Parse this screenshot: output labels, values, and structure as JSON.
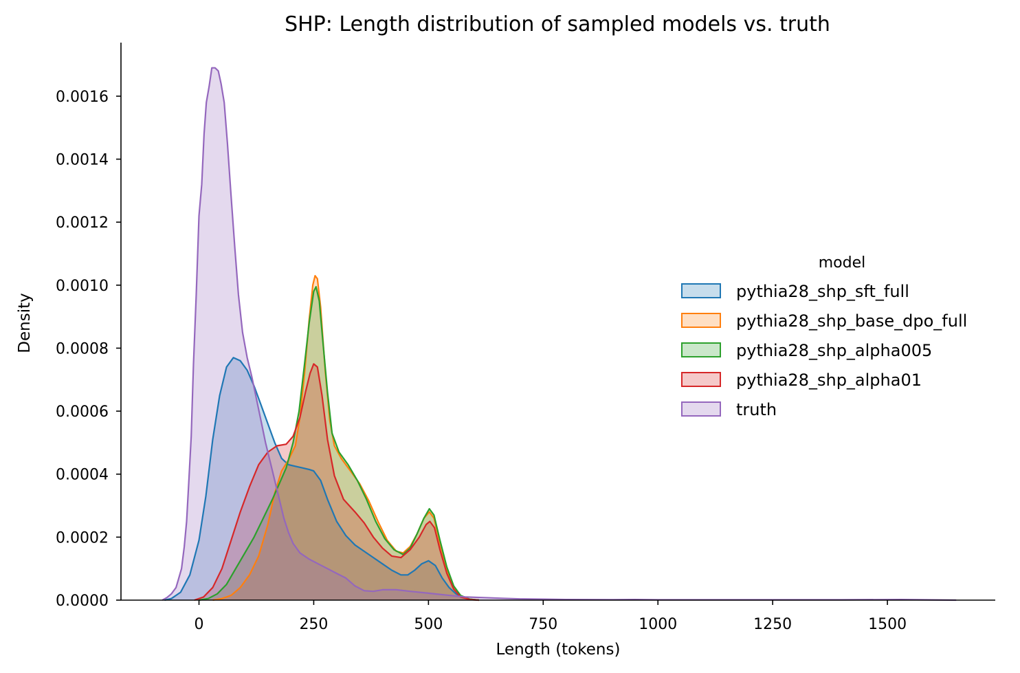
{
  "chart_data": {
    "type": "area",
    "title": "SHP: Length distribution of sampled models vs. truth",
    "xlabel": "Length (tokens)",
    "ylabel": "Density",
    "xlim": [
      -170,
      1735
    ],
    "ylim": [
      0,
      0.00177
    ],
    "xticks": [
      0,
      250,
      500,
      750,
      1000,
      1250,
      1500
    ],
    "xtick_labels": [
      "0",
      "250",
      "500",
      "750",
      "1000",
      "1250",
      "1500"
    ],
    "yticks": [
      0,
      0.0002,
      0.0004,
      0.0006,
      0.0008,
      0.001,
      0.0012,
      0.0014,
      0.0016
    ],
    "ytick_labels": [
      "0.0000",
      "0.0002",
      "0.0004",
      "0.0006",
      "0.0008",
      "0.0010",
      "0.0012",
      "0.0014",
      "0.0016"
    ],
    "grid": false,
    "legend": {
      "title": "model",
      "placement": "center-right"
    },
    "series": [
      {
        "name": "pythia28_shp_sft_full",
        "color": "#1f77b4",
        "points": [
          [
            -75,
            0
          ],
          [
            -60,
            5e-06
          ],
          [
            -40,
            2.5e-05
          ],
          [
            -20,
            8e-05
          ],
          [
            0,
            0.00019
          ],
          [
            15,
            0.00033
          ],
          [
            30,
            0.00051
          ],
          [
            45,
            0.00065
          ],
          [
            60,
            0.00074
          ],
          [
            75,
            0.00077
          ],
          [
            90,
            0.00076
          ],
          [
            105,
            0.00073
          ],
          [
            120,
            0.00068
          ],
          [
            135,
            0.00062
          ],
          [
            150,
            0.00056
          ],
          [
            165,
            0.0005
          ],
          [
            180,
            0.00045
          ],
          [
            195,
            0.00043
          ],
          [
            210,
            0.000425
          ],
          [
            225,
            0.00042
          ],
          [
            240,
            0.000415
          ],
          [
            250,
            0.00041
          ],
          [
            265,
            0.00038
          ],
          [
            280,
            0.00032
          ],
          [
            300,
            0.00025
          ],
          [
            320,
            0.000205
          ],
          [
            340,
            0.000175
          ],
          [
            360,
            0.000155
          ],
          [
            380,
            0.000135
          ],
          [
            400,
            0.000115
          ],
          [
            420,
            9.5e-05
          ],
          [
            440,
            8e-05
          ],
          [
            455,
            8e-05
          ],
          [
            470,
            9.5e-05
          ],
          [
            485,
            0.000115
          ],
          [
            500,
            0.000125
          ],
          [
            515,
            0.00011
          ],
          [
            530,
            7e-05
          ],
          [
            545,
            4e-05
          ],
          [
            560,
            2e-05
          ],
          [
            575,
            8e-06
          ],
          [
            590,
            3e-06
          ],
          [
            610,
            0
          ]
        ]
      },
      {
        "name": "pythia28_shp_base_dpo_full",
        "color": "#ff7f0e",
        "points": [
          [
            30,
            0
          ],
          [
            50,
            5e-06
          ],
          [
            70,
            1.5e-05
          ],
          [
            90,
            4e-05
          ],
          [
            110,
            8e-05
          ],
          [
            130,
            0.00014
          ],
          [
            150,
            0.00024
          ],
          [
            165,
            0.00034
          ],
          [
            180,
            0.00041
          ],
          [
            195,
            0.000445
          ],
          [
            210,
            0.00049
          ],
          [
            220,
            0.00058
          ],
          [
            230,
            0.00072
          ],
          [
            240,
            0.00089
          ],
          [
            248,
            0.001
          ],
          [
            253,
            0.00103
          ],
          [
            258,
            0.00102
          ],
          [
            265,
            0.00093
          ],
          [
            275,
            0.00073
          ],
          [
            285,
            0.00057
          ],
          [
            295,
            0.00049
          ],
          [
            310,
            0.00045
          ],
          [
            330,
            0.00041
          ],
          [
            350,
            0.00037
          ],
          [
            370,
            0.000315
          ],
          [
            390,
            0.00025
          ],
          [
            410,
            0.00019
          ],
          [
            430,
            0.000155
          ],
          [
            445,
            0.00015
          ],
          [
            460,
            0.00017
          ],
          [
            475,
            0.00021
          ],
          [
            490,
            0.00026
          ],
          [
            502,
            0.00028
          ],
          [
            512,
            0.00026
          ],
          [
            525,
            0.00018
          ],
          [
            540,
            0.0001
          ],
          [
            555,
            4e-05
          ],
          [
            570,
            1.2e-05
          ],
          [
            590,
            2e-06
          ],
          [
            610,
            0
          ]
        ]
      },
      {
        "name": "pythia28_shp_alpha005",
        "color": "#2ca02c",
        "points": [
          [
            0,
            0
          ],
          [
            20,
            5e-06
          ],
          [
            40,
            2e-05
          ],
          [
            60,
            5e-05
          ],
          [
            80,
            0.0001
          ],
          [
            100,
            0.00015
          ],
          [
            120,
            0.0002
          ],
          [
            140,
            0.00026
          ],
          [
            160,
            0.00032
          ],
          [
            175,
            0.00037
          ],
          [
            190,
            0.00042
          ],
          [
            205,
            0.0005
          ],
          [
            218,
            0.0006
          ],
          [
            230,
            0.00075
          ],
          [
            240,
            0.00088
          ],
          [
            250,
            0.00098
          ],
          [
            255,
            0.000995
          ],
          [
            262,
            0.00095
          ],
          [
            270,
            0.00082
          ],
          [
            280,
            0.00066
          ],
          [
            290,
            0.00053
          ],
          [
            305,
            0.00047
          ],
          [
            325,
            0.00043
          ],
          [
            345,
            0.00038
          ],
          [
            365,
            0.00032
          ],
          [
            385,
            0.00025
          ],
          [
            405,
            0.000195
          ],
          [
            425,
            0.00016
          ],
          [
            445,
            0.000145
          ],
          [
            460,
            0.000165
          ],
          [
            475,
            0.00021
          ],
          [
            490,
            0.00026
          ],
          [
            502,
            0.00029
          ],
          [
            512,
            0.00027
          ],
          [
            525,
            0.00019
          ],
          [
            540,
            0.000105
          ],
          [
            555,
            4.5e-05
          ],
          [
            570,
            1.5e-05
          ],
          [
            590,
            3e-06
          ],
          [
            610,
            0
          ]
        ]
      },
      {
        "name": "pythia28_shp_alpha01",
        "color": "#d62728",
        "points": [
          [
            -10,
            0
          ],
          [
            10,
            1e-05
          ],
          [
            30,
            4e-05
          ],
          [
            50,
            0.0001
          ],
          [
            70,
            0.00019
          ],
          [
            90,
            0.00028
          ],
          [
            110,
            0.00036
          ],
          [
            130,
            0.00043
          ],
          [
            150,
            0.00047
          ],
          [
            170,
            0.00049
          ],
          [
            190,
            0.000495
          ],
          [
            205,
            0.00052
          ],
          [
            220,
            0.00058
          ],
          [
            232,
            0.00066
          ],
          [
            242,
            0.00072
          ],
          [
            250,
            0.00075
          ],
          [
            258,
            0.00074
          ],
          [
            268,
            0.00065
          ],
          [
            280,
            0.00051
          ],
          [
            295,
            0.000395
          ],
          [
            315,
            0.00032
          ],
          [
            340,
            0.00028
          ],
          [
            360,
            0.000245
          ],
          [
            380,
            0.0002
          ],
          [
            400,
            0.000165
          ],
          [
            420,
            0.00014
          ],
          [
            440,
            0.000135
          ],
          [
            460,
            0.00016
          ],
          [
            480,
            0.0002
          ],
          [
            495,
            0.00024
          ],
          [
            503,
            0.00025
          ],
          [
            513,
            0.00023
          ],
          [
            525,
            0.00016
          ],
          [
            540,
            8.5e-05
          ],
          [
            555,
            3.5e-05
          ],
          [
            570,
            1e-05
          ],
          [
            590,
            2e-06
          ],
          [
            610,
            0
          ]
        ]
      },
      {
        "name": "truth",
        "color": "#9467bd",
        "points": [
          [
            -80,
            0
          ],
          [
            -70,
            8e-06
          ],
          [
            -60,
            2e-05
          ],
          [
            -50,
            4e-05
          ],
          [
            -45,
            6.5e-05
          ],
          [
            -38,
            0.0001
          ],
          [
            -32,
            0.00017
          ],
          [
            -27,
            0.00025
          ],
          [
            -22,
            0.00038
          ],
          [
            -17,
            0.00052
          ],
          [
            -12,
            0.00075
          ],
          [
            -6,
            0.00097
          ],
          [
            0,
            0.00122
          ],
          [
            6,
            0.00132
          ],
          [
            11,
            0.00148
          ],
          [
            16,
            0.00158
          ],
          [
            22,
            0.00163
          ],
          [
            28,
            0.00169
          ],
          [
            35,
            0.00169
          ],
          [
            42,
            0.00168
          ],
          [
            48,
            0.00164
          ],
          [
            55,
            0.00158
          ],
          [
            62,
            0.00145
          ],
          [
            70,
            0.00128
          ],
          [
            78,
            0.00112
          ],
          [
            86,
            0.00097
          ],
          [
            95,
            0.00085
          ],
          [
            105,
            0.00077
          ],
          [
            115,
            0.00071
          ],
          [
            125,
            0.00064
          ],
          [
            135,
            0.00057
          ],
          [
            145,
            0.0005
          ],
          [
            155,
            0.00044
          ],
          [
            165,
            0.00038
          ],
          [
            175,
            0.00032
          ],
          [
            185,
            0.00026
          ],
          [
            195,
            0.000215
          ],
          [
            205,
            0.00018
          ],
          [
            220,
            0.00015
          ],
          [
            240,
            0.00013
          ],
          [
            260,
            0.000115
          ],
          [
            280,
            0.0001
          ],
          [
            300,
            8.5e-05
          ],
          [
            320,
            7e-05
          ],
          [
            340,
            4.5e-05
          ],
          [
            360,
            3e-05
          ],
          [
            380,
            2.8e-05
          ],
          [
            400,
            3.3e-05
          ],
          [
            430,
            3.3e-05
          ],
          [
            460,
            2.8e-05
          ],
          [
            500,
            2.2e-05
          ],
          [
            540,
            1.6e-05
          ],
          [
            580,
            1e-05
          ],
          [
            620,
            8e-06
          ],
          [
            660,
            6e-06
          ],
          [
            700,
            4e-06
          ],
          [
            750,
            3e-06
          ],
          [
            800,
            2e-06
          ],
          [
            900,
            1.5e-06
          ],
          [
            950,
            2e-06
          ],
          [
            1000,
            1e-06
          ],
          [
            1200,
            1e-06
          ],
          [
            1400,
            1e-06
          ],
          [
            1530,
            2e-06
          ],
          [
            1580,
            1e-06
          ],
          [
            1650,
            0
          ]
        ]
      }
    ]
  }
}
